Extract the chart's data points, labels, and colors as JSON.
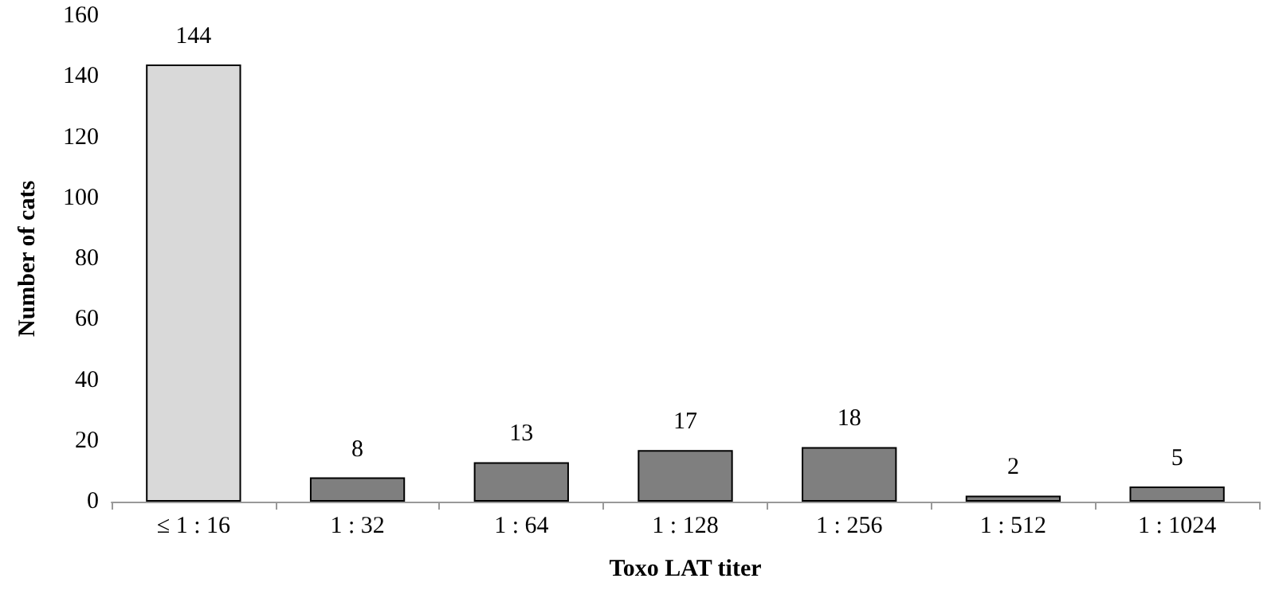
{
  "chart_data": {
    "type": "bar",
    "xlabel": "Toxo LAT titer",
    "ylabel": "Number of cats",
    "categories": [
      "≤ 1 : 16",
      "1 : 32",
      "1 : 64",
      "1 : 128",
      "1 : 256",
      "1 : 512",
      "1 : 1024"
    ],
    "values": [
      144,
      8,
      13,
      17,
      18,
      2,
      5
    ],
    "colors": [
      "#d9d9d9",
      "#7f7f7f",
      "#7f7f7f",
      "#7f7f7f",
      "#7f7f7f",
      "#7f7f7f",
      "#7f7f7f"
    ],
    "ylim": [
      0,
      160
    ],
    "yticks": [
      0,
      20,
      40,
      60,
      80,
      100,
      120,
      140,
      160
    ],
    "grid": false,
    "data_labels": true
  }
}
